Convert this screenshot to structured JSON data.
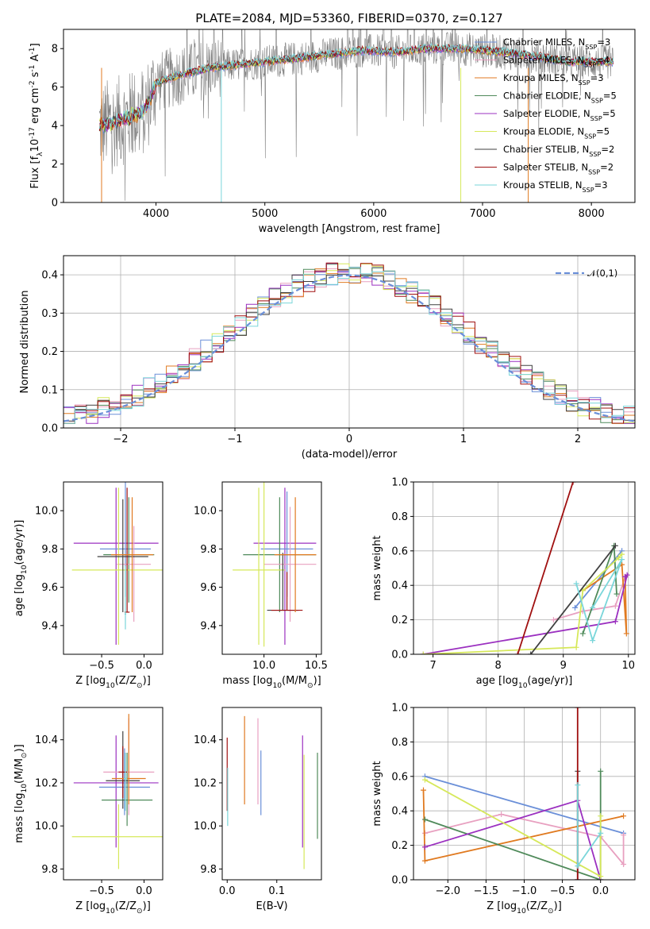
{
  "chart_data": [
    {
      "type": "line",
      "panel": "spectrum",
      "title": "PLATE=2084, MJD=53360, FIBERID=0370, z=0.127",
      "xlabel": "wavelength [Angstrom, rest frame]",
      "ylabel": "Flux [f$_\\lambda$10$^{-17}$ erg cm$^{-2}$ s$^{-1}$ A$^{-1}$]",
      "xlim": [
        3150,
        8400
      ],
      "ylim": [
        0,
        9
      ],
      "xticks": [
        "4000",
        "5000",
        "6000",
        "7000",
        "8000"
      ],
      "yticks": [
        "0",
        "2",
        "4",
        "6",
        "8"
      ],
      "legend_position": "upper right",
      "data_color": "#808080",
      "series": [
        {
          "name": "Chabrier MILES, N$_{SSP}$=3",
          "color": "#6a8fd8"
        },
        {
          "name": "Salpeter MILES, N$_{SSP}$=4",
          "color": "#e8a0c0"
        },
        {
          "name": "Kroupa MILES, N$_{SSP}$=3",
          "color": "#e07a20"
        },
        {
          "name": "Chabrier ELODIE, N$_{SSP}$=5",
          "color": "#4f8a5a"
        },
        {
          "name": "Salpeter ELODIE, N$_{SSP}$=5",
          "color": "#9b30c0"
        },
        {
          "name": "Kroupa ELODIE, N$_{SSP}$=5",
          "color": "#d6e85a"
        },
        {
          "name": "Chabrier STELIB, N$_{SSP}$=2",
          "color": "#404040"
        },
        {
          "name": "Salpeter STELIB, N$_{SSP}$=2",
          "color": "#a01010"
        },
        {
          "name": "Kroupa STELIB, N$_{SSP}$=3",
          "color": "#7ad6da"
        }
      ],
      "continuum": {
        "x": [
          3500,
          3700,
          3900,
          4000,
          4200,
          4500,
          4800,
          5000,
          5300,
          5600,
          5900,
          6200,
          6500,
          6800,
          7000,
          7200,
          7500,
          7800,
          8100
        ],
        "y": [
          4.0,
          4.3,
          4.8,
          6.2,
          6.6,
          7.0,
          7.2,
          7.3,
          7.5,
          7.7,
          7.9,
          7.8,
          8.0,
          8.0,
          7.9,
          7.8,
          7.6,
          7.3,
          7.3
        ]
      }
    },
    {
      "type": "bar",
      "panel": "residual-histogram",
      "xlabel": "(data-model)/error",
      "ylabel": "Normed distribution",
      "xlim": [
        -2.5,
        2.5
      ],
      "ylim": [
        0,
        0.45
      ],
      "xticks": [
        "−2",
        "−1",
        "0",
        "1",
        "2"
      ],
      "yticks": [
        "0.0",
        "0.1",
        "0.2",
        "0.3",
        "0.4"
      ],
      "legend": {
        "label": "$\\mathcal{N}(0,1)$",
        "position": "upper right",
        "color": "#6a8fd8"
      },
      "bin_width": 0.1,
      "bin_start": -2.5
    },
    {
      "type": "scatter",
      "panel": "age-vs-Z",
      "xlabel": "Z [log$_{10}$(Z/Z$_\\odot$)]",
      "ylabel": "age  [log$_{10}$(age/yr)]",
      "xlim": [
        -0.95,
        0.22
      ],
      "ylim": [
        9.25,
        10.15
      ],
      "xticks": [
        "−0.5",
        "0.0"
      ],
      "yticks": [
        "9.4",
        "9.6",
        "9.8",
        "10.0"
      ],
      "points": [
        {
          "x": -0.33,
          "y": 9.83,
          "xerr": 0.5,
          "yerr": [
            0.53,
            0.29
          ],
          "color": "#9b30c0"
        },
        {
          "x": -0.22,
          "y": 9.8,
          "xerr": 0.3,
          "yerr": [
            0.25,
            0.42
          ],
          "color": "#6a8fd8"
        },
        {
          "x": -0.18,
          "y": 9.77,
          "xerr": 0.3,
          "yerr": [
            0.25,
            0.3
          ],
          "color": "#4f8a5a"
        },
        {
          "x": -0.12,
          "y": 9.72,
          "xerr": 0.2,
          "yerr": [
            0.3,
            0.2
          ],
          "color": "#e8a0c0"
        },
        {
          "x": -0.3,
          "y": 9.69,
          "xerr": 0.55,
          "yerr": [
            0.39,
            0.43
          ],
          "color": "#d6e85a"
        },
        {
          "x": -0.25,
          "y": 9.76,
          "xerr": 0.3,
          "yerr": [
            0.29,
            0.3
          ],
          "color": "#404040"
        },
        {
          "x": -0.2,
          "y": 9.47,
          "xerr": 0.03,
          "yerr": [
            0.0,
            0.65
          ],
          "color": "#a01010"
        },
        {
          "x": -0.14,
          "y": 9.77,
          "xerr": 0.25,
          "yerr": [
            0.3,
            0.3
          ],
          "color": "#e07a20"
        },
        {
          "x": -0.22,
          "y": 9.46,
          "xerr": 0.01,
          "yerr": [
            0.08,
            0.25
          ],
          "color": "#7ad6da"
        }
      ]
    },
    {
      "type": "scatter",
      "panel": "age-vs-mass",
      "xlabel": "mass [log$_{10}$(M/M$_\\odot$)]",
      "xlim": [
        9.6,
        10.55
      ],
      "ylim": [
        9.25,
        10.15
      ],
      "xticks": [
        "10.0",
        "10.5"
      ],
      "yticks": [
        "9.4",
        "9.6",
        "9.8",
        "10.0"
      ],
      "points": [
        {
          "x": 10.2,
          "y": 9.83,
          "xerr": 0.3,
          "yerr": [
            0.53,
            0.29
          ],
          "color": "#9b30c0"
        },
        {
          "x": 10.22,
          "y": 9.8,
          "xerr": 0.25,
          "yerr": [
            0.25,
            0.3
          ],
          "color": "#6a8fd8"
        },
        {
          "x": 10.15,
          "y": 9.77,
          "xerr": 0.35,
          "yerr": [
            0.3,
            0.3
          ],
          "color": "#4f8a5a"
        },
        {
          "x": 10.25,
          "y": 9.72,
          "xerr": 0.25,
          "yerr": [
            0.3,
            0.3
          ],
          "color": "#e8a0c0"
        },
        {
          "x": 9.95,
          "y": 9.69,
          "xerr": 0.25,
          "yerr": [
            0.39,
            0.43
          ],
          "color": "#d6e85a"
        },
        {
          "x": 10.18,
          "y": 9.48,
          "xerr": 0.15,
          "yerr": [
            0.0,
            0.3
          ],
          "color": "#404040"
        },
        {
          "x": 10.22,
          "y": 9.48,
          "xerr": 0.15,
          "yerr": [
            0.0,
            0.2
          ],
          "color": "#a01010"
        },
        {
          "x": 10.3,
          "y": 9.77,
          "xerr": 0.2,
          "yerr": [
            0.3,
            0.3
          ],
          "color": "#e07a20"
        },
        {
          "x": 10.0,
          "y": 9.69,
          "xerr": 0.0,
          "yerr": [
            0.4,
            0.5
          ],
          "color": "#d6e85a"
        }
      ]
    },
    {
      "type": "line",
      "panel": "mass-weight-vs-age",
      "xlabel": "age  [log$_{10}$(age/yr)]",
      "ylabel": "mass weight",
      "xlim": [
        6.7,
        10.1
      ],
      "ylim": [
        0,
        1
      ],
      "xticks": [
        "7",
        "8",
        "9",
        "10"
      ],
      "yticks": [
        "0.0",
        "0.2",
        "0.4",
        "0.6",
        "0.8",
        "1.0"
      ],
      "series": [
        {
          "name": "Chabrier MILES",
          "color": "#6a8fd8",
          "x": [
            9.18,
            9.9
          ],
          "y": [
            0.27,
            0.6
          ]
        },
        {
          "name": "Salpeter MILES",
          "color": "#e8a0c0",
          "x": [
            8.85,
            9.3,
            9.8,
            9.95
          ],
          "y": [
            0.2,
            0.25,
            0.28,
            0.45
          ]
        },
        {
          "name": "Kroupa MILES",
          "color": "#e07a20",
          "x": [
            9.3,
            9.9,
            9.97,
            9.95
          ],
          "y": [
            0.37,
            0.52,
            0.12,
            0.45
          ]
        },
        {
          "name": "Chabrier ELODIE",
          "color": "#4f8a5a",
          "x": [
            9.3,
            9.78,
            9.82
          ],
          "y": [
            0.12,
            0.63,
            0.35
          ]
        },
        {
          "name": "Salpeter ELODIE",
          "color": "#9b30c0",
          "x": [
            6.85,
            9.8,
            9.98,
            9.95
          ],
          "y": [
            0.0,
            0.19,
            0.46,
            0.45
          ]
        },
        {
          "name": "Kroupa ELODIE",
          "color": "#d6e85a",
          "x": [
            6.85,
            9.2,
            9.3,
            9.85,
            9.9
          ],
          "y": [
            0.0,
            0.04,
            0.37,
            0.56,
            0.58
          ]
        },
        {
          "name": "Chabrier STELIB",
          "color": "#404040",
          "x": [
            8.5,
            9.8
          ],
          "y": [
            0.0,
            0.63
          ]
        },
        {
          "name": "Salpeter STELIB",
          "color": "#a01010",
          "x": [
            8.3,
            9.15
          ],
          "y": [
            0.0,
            1.0
          ]
        },
        {
          "name": "Kroupa STELIB",
          "color": "#7ad6da",
          "x": [
            9.2,
            9.45,
            9.9,
            9.45
          ],
          "y": [
            0.41,
            0.08,
            0.55,
            0.27
          ]
        }
      ]
    },
    {
      "type": "scatter",
      "panel": "mass-vs-Z",
      "xlabel": "Z [log$_{10}$(Z/Z$_\\odot$)]",
      "ylabel": "mass [log$_{10}$(M/M$_\\odot$)]",
      "xlim": [
        -0.95,
        0.22
      ],
      "ylim": [
        9.75,
        10.55
      ],
      "xticks": [
        "−0.5",
        "0.0"
      ],
      "yticks": [
        "9.8",
        "10.0",
        "10.2",
        "10.4"
      ],
      "points": [
        {
          "x": -0.33,
          "y": 10.2,
          "xerr": 0.5,
          "yerr": [
            0.3,
            0.22
          ],
          "color": "#9b30c0"
        },
        {
          "x": -0.23,
          "y": 10.18,
          "xerr": 0.3,
          "yerr": [
            0.13,
            0.18
          ],
          "color": "#6a8fd8"
        },
        {
          "x": -0.2,
          "y": 10.12,
          "xerr": 0.3,
          "yerr": [
            0.12,
            0.22
          ],
          "color": "#4f8a5a"
        },
        {
          "x": -0.18,
          "y": 10.25,
          "xerr": 0.3,
          "yerr": [
            0.2,
            0.25
          ],
          "color": "#e8a0c0"
        },
        {
          "x": -0.3,
          "y": 9.95,
          "xerr": 0.55,
          "yerr": [
            0.15,
            0.15
          ],
          "color": "#d6e85a"
        },
        {
          "x": -0.25,
          "y": 10.21,
          "xerr": 0.2,
          "yerr": [
            0.13,
            0.23
          ],
          "color": "#404040"
        },
        {
          "x": -0.25,
          "y": 10.25,
          "xerr": 0.05,
          "yerr": [
            0.12,
            0.12
          ],
          "color": "#a01010"
        },
        {
          "x": -0.18,
          "y": 10.22,
          "xerr": 0.2,
          "yerr": [
            0.12,
            0.3
          ],
          "color": "#e07a20"
        },
        {
          "x": -0.22,
          "y": 10.22,
          "xerr": 0.02,
          "yerr": [
            0.15,
            0.12
          ],
          "color": "#7ad6da"
        }
      ]
    },
    {
      "type": "scatter",
      "panel": "mass-vs-ebv",
      "xlabel": "E(B-V)",
      "xlim": [
        -0.01,
        0.19
      ],
      "ylim": [
        9.75,
        10.55
      ],
      "xticks": [
        "0.0",
        "0.1"
      ],
      "yticks": [
        "9.8",
        "10.0",
        "10.2",
        "10.4"
      ],
      "points": [
        {
          "x": 0.0,
          "y": 10.22,
          "yerr": [
            0.15,
            0.19
          ],
          "color": "#a01010"
        },
        {
          "x": 0.001,
          "y": 10.12,
          "yerr": [
            0.12,
            0.15
          ],
          "color": "#7ad6da"
        },
        {
          "x": 0.035,
          "y": 10.3,
          "yerr": [
            0.2,
            0.21
          ],
          "color": "#e07a20"
        },
        {
          "x": 0.062,
          "y": 10.3,
          "yerr": [
            0.2,
            0.2
          ],
          "color": "#e8a0c0"
        },
        {
          "x": 0.068,
          "y": 10.2,
          "yerr": [
            0.15,
            0.15
          ],
          "color": "#6a8fd8"
        },
        {
          "x": 0.152,
          "y": 10.1,
          "yerr": [
            0.2,
            0.32
          ],
          "color": "#9b30c0"
        },
        {
          "x": 0.155,
          "y": 10.0,
          "yerr": [
            0.2,
            0.33
          ],
          "color": "#d6e85a"
        },
        {
          "x": 0.182,
          "y": 10.14,
          "yerr": [
            0.2,
            0.2
          ],
          "color": "#4f8a5a"
        }
      ]
    },
    {
      "type": "line",
      "panel": "mass-weight-vs-Z",
      "xlabel": "Z [log$_{10}$(Z/Z$_\\odot$)]",
      "ylabel": "mass weight",
      "xlim": [
        -2.45,
        0.45
      ],
      "ylim": [
        0,
        1
      ],
      "xticks": [
        "−2.0",
        "−1.5",
        "−1.0",
        "−0.5",
        "0.0"
      ],
      "yticks": [
        "0.0",
        "0.2",
        "0.4",
        "0.6",
        "0.8",
        "1.0"
      ],
      "series": [
        {
          "name": "Chabrier MILES",
          "color": "#6a8fd8",
          "x": [
            -2.3,
            0.3
          ],
          "y": [
            0.6,
            0.27
          ]
        },
        {
          "name": "Salpeter MILES",
          "color": "#e8a0c0",
          "x": [
            -2.3,
            -1.3,
            0.0,
            0.3,
            0.3
          ],
          "y": [
            0.27,
            0.38,
            0.25,
            0.09,
            0.26
          ]
        },
        {
          "name": "Kroupa MILES",
          "color": "#e07a20",
          "x": [
            -2.32,
            -2.3,
            0.3
          ],
          "y": [
            0.52,
            0.11,
            0.37
          ]
        },
        {
          "name": "Chabrier ELODIE",
          "color": "#4f8a5a",
          "x": [
            -2.3,
            0.0,
            0.0
          ],
          "y": [
            0.35,
            0.0,
            0.63
          ]
        },
        {
          "name": "Salpeter ELODIE",
          "color": "#9b30c0",
          "x": [
            -2.3,
            -0.3,
            0.0
          ],
          "y": [
            0.19,
            0.46,
            0.0
          ]
        },
        {
          "name": "Kroupa ELODIE",
          "color": "#d6e85a",
          "x": [
            -2.3,
            0.0,
            0.0
          ],
          "y": [
            0.58,
            0.02,
            0.37
          ]
        },
        {
          "name": "Chabrier STELIB",
          "color": "#404040",
          "x": [
            -0.3,
            -0.3
          ],
          "y": [
            0.0,
            0.63
          ]
        },
        {
          "name": "Salpeter STELIB",
          "color": "#a01010",
          "x": [
            -0.3,
            -0.3
          ],
          "y": [
            0.0,
            1.0
          ]
        },
        {
          "name": "Kroupa STELIB",
          "color": "#7ad6da",
          "x": [
            -0.3,
            -0.3,
            0.0
          ],
          "y": [
            0.55,
            0.08,
            0.27
          ]
        }
      ]
    }
  ]
}
